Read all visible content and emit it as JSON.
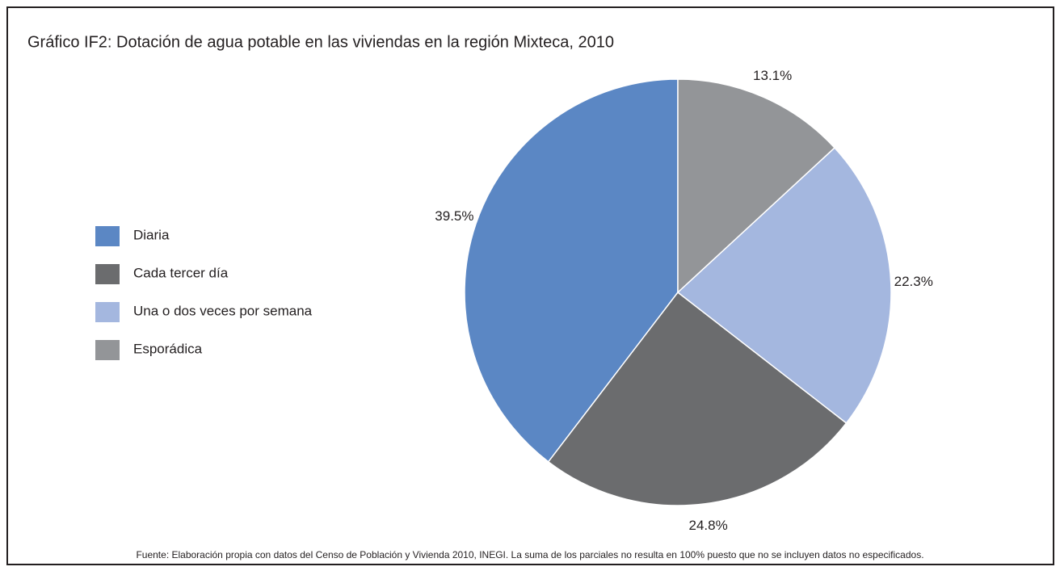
{
  "chart_data": {
    "type": "pie",
    "title": "Gráfico IF2: Dotación de agua potable en las viviendas en la región Mixteca, 2010",
    "categories": [
      "Diaria",
      "Cada tercer día",
      "Una o dos veces por semana",
      "Esporádica"
    ],
    "values": [
      39.5,
      24.8,
      22.3,
      13.1
    ],
    "value_labels": [
      "39.5%",
      "24.8%",
      "22.3%",
      "13.1%"
    ],
    "colors": [
      "#5b87c4",
      "#6b6c6e",
      "#a4b7df",
      "#939598"
    ],
    "legend": "left",
    "note": "Fuente: Elaboración propia con datos del Censo de Población y Vivienda 2010, INEGI. La suma de los parciales no resulta en 100% puesto que no se incluyen datos no especificados."
  }
}
